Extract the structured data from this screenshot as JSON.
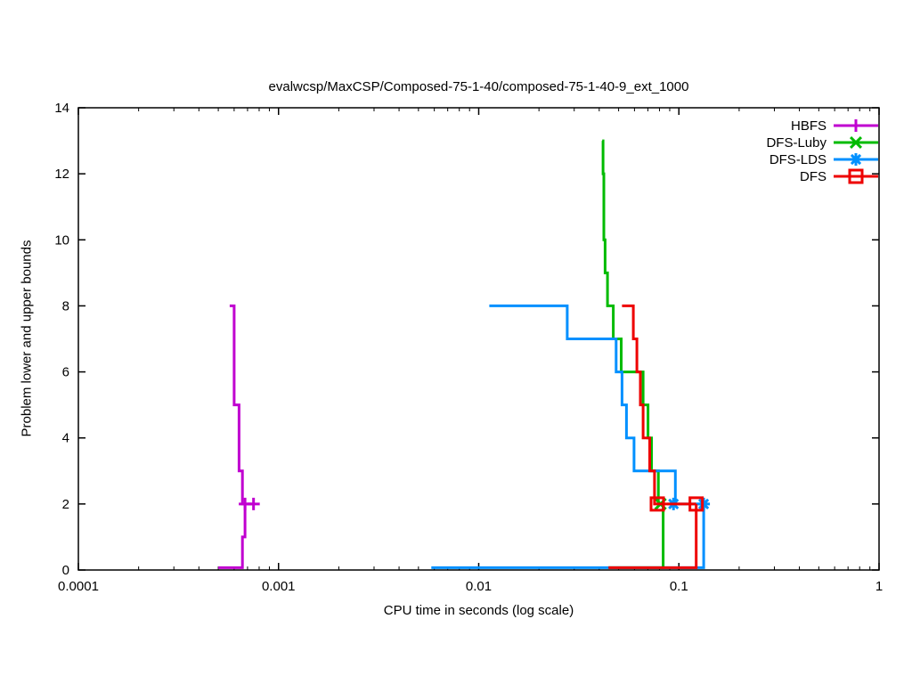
{
  "title": "evalwcsp/MaxCSP/Composed-75-1-40/composed-75-1-40-9_ext_1000",
  "chart_data": {
    "type": "line",
    "subtype": "step-bounds (gnuplot style)",
    "title": "evalwcsp/MaxCSP/Composed-75-1-40/composed-75-1-40-9_ext_1000",
    "xlabel": "CPU time in seconds (log scale)",
    "ylabel": "Problem lower and upper bounds",
    "x_scale": "log",
    "xlim": [
      0.0001,
      1
    ],
    "ylim": [
      0,
      14
    ],
    "grid": false,
    "legend_position": "top-right-inside",
    "x_ticks": [
      {
        "v": 0.0001,
        "label": "0.0001"
      },
      {
        "v": 0.001,
        "label": "0.001"
      },
      {
        "v": 0.01,
        "label": "0.01"
      },
      {
        "v": 0.1,
        "label": "0.1"
      },
      {
        "v": 1,
        "label": "1"
      }
    ],
    "y_ticks": [
      {
        "v": 0,
        "label": "0"
      },
      {
        "v": 2,
        "label": "2"
      },
      {
        "v": 4,
        "label": "4"
      },
      {
        "v": 6,
        "label": "6"
      },
      {
        "v": 8,
        "label": "8"
      },
      {
        "v": 10,
        "label": "10"
      },
      {
        "v": 12,
        "label": "12"
      },
      {
        "v": 14,
        "label": "14"
      }
    ],
    "series": [
      {
        "name": "HBFS",
        "color": "#c000d0",
        "marker": "plus",
        "upper_bound": [
          [
            0.00057,
            8
          ],
          [
            0.0006,
            8
          ],
          [
            0.0006,
            5
          ],
          [
            0.000635,
            5
          ],
          [
            0.000635,
            3
          ],
          [
            0.00066,
            3
          ],
          [
            0.00066,
            2
          ],
          [
            0.00076,
            2
          ]
        ],
        "lower_bound": [
          [
            0.0005,
            0.07
          ],
          [
            0.00066,
            0.07
          ],
          [
            0.00066,
            1
          ],
          [
            0.00068,
            1
          ],
          [
            0.00068,
            2
          ]
        ],
        "marker_points": [
          [
            0.00068,
            2
          ],
          [
            0.00075,
            2
          ]
        ]
      },
      {
        "name": "DFS-Luby",
        "color": "#00bb00",
        "marker": "cross",
        "upper_bound": [
          [
            0.0414,
            13
          ],
          [
            0.0418,
            13
          ],
          [
            0.0418,
            12
          ],
          [
            0.0422,
            12
          ],
          [
            0.0422,
            10
          ],
          [
            0.0428,
            10
          ],
          [
            0.0428,
            9
          ],
          [
            0.044,
            9
          ],
          [
            0.044,
            8
          ],
          [
            0.047,
            8
          ],
          [
            0.047,
            7
          ],
          [
            0.0515,
            7
          ],
          [
            0.0515,
            6
          ],
          [
            0.0663,
            6
          ],
          [
            0.0663,
            5
          ],
          [
            0.0701,
            5
          ],
          [
            0.0701,
            4
          ],
          [
            0.073,
            4
          ],
          [
            0.073,
            3
          ],
          [
            0.079,
            3
          ],
          [
            0.079,
            2
          ],
          [
            0.083,
            2
          ]
        ],
        "lower_bound": [
          [
            0.0445,
            0.07
          ],
          [
            0.0835,
            0.07
          ],
          [
            0.0835,
            2
          ]
        ],
        "marker_points": [
          [
            0.081,
            2
          ]
        ]
      },
      {
        "name": "DFS-LDS",
        "color": "#0090ff",
        "marker": "star",
        "upper_bound": [
          [
            0.0113,
            8
          ],
          [
            0.0277,
            8
          ],
          [
            0.0277,
            7
          ],
          [
            0.0486,
            7
          ],
          [
            0.0486,
            6
          ],
          [
            0.052,
            6
          ],
          [
            0.052,
            5
          ],
          [
            0.0547,
            5
          ],
          [
            0.0547,
            4
          ],
          [
            0.0597,
            4
          ],
          [
            0.0597,
            3
          ],
          [
            0.096,
            3
          ],
          [
            0.096,
            2
          ],
          [
            0.133,
            2
          ]
        ],
        "lower_bound": [
          [
            0.0058,
            0.07
          ],
          [
            0.133,
            0.07
          ],
          [
            0.133,
            2
          ]
        ],
        "marker_points": [
          [
            0.094,
            2
          ],
          [
            0.133,
            2
          ]
        ]
      },
      {
        "name": "DFS",
        "color": "#ee0000",
        "marker": "square",
        "upper_bound": [
          [
            0.052,
            8
          ],
          [
            0.0592,
            8
          ],
          [
            0.0592,
            7
          ],
          [
            0.0617,
            7
          ],
          [
            0.0617,
            6
          ],
          [
            0.0642,
            6
          ],
          [
            0.0642,
            5
          ],
          [
            0.0663,
            5
          ],
          [
            0.0663,
            4
          ],
          [
            0.0715,
            4
          ],
          [
            0.0715,
            3
          ],
          [
            0.0756,
            3
          ],
          [
            0.0756,
            2
          ],
          [
            0.122,
            2
          ]
        ],
        "lower_bound": [
          [
            0.0445,
            0.07
          ],
          [
            0.122,
            0.07
          ],
          [
            0.122,
            2
          ]
        ],
        "marker_points": [
          [
            0.078,
            2
          ],
          [
            0.122,
            2
          ]
        ]
      }
    ]
  },
  "axis_color": "#000000",
  "background_color": "#ffffff"
}
